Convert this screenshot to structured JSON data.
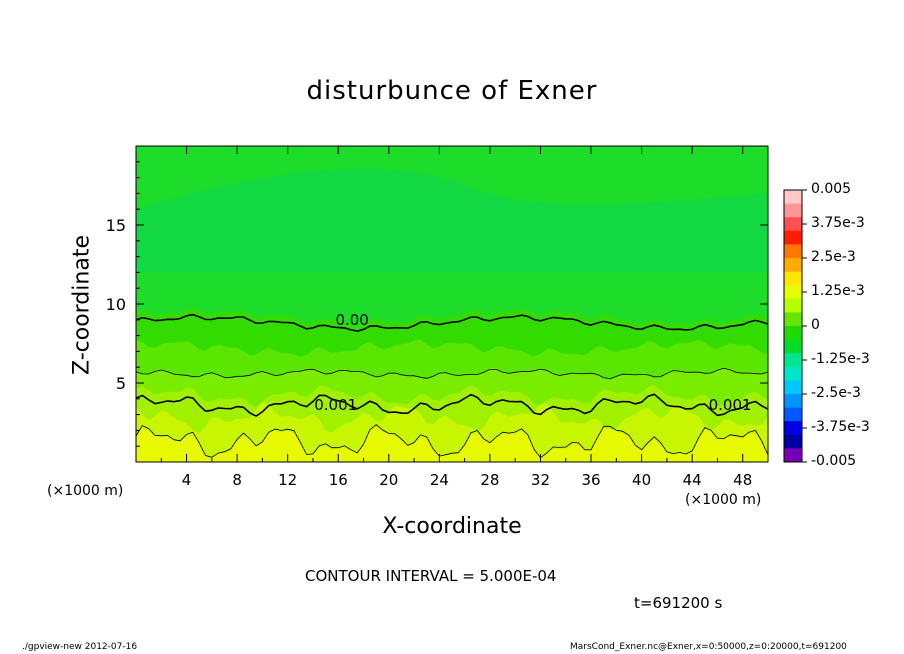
{
  "chart_data": {
    "type": "heatmap",
    "title": "disturbunce of Exner",
    "xlabel": "X-coordinate",
    "ylabel": "Z-coordinate",
    "x_unit": "(×1000 m)",
    "x_unit_right": "(×1000 m)",
    "xlim": [
      0,
      50
    ],
    "ylim": [
      0,
      20
    ],
    "x_ticks": [
      4,
      8,
      12,
      16,
      20,
      24,
      28,
      32,
      36,
      40,
      44,
      48
    ],
    "y_ticks": [
      5,
      10,
      15
    ],
    "contour_interval": "CONTOUR INTERVAL = 5.000E-04",
    "contour_labels": [
      {
        "text": "0.00",
        "x": 17.1,
        "z": 9.0
      },
      {
        "text": "0.001",
        "x": 15.8,
        "z": 3.6
      },
      {
        "text": "0.001",
        "x": 47.0,
        "z": 3.6
      }
    ],
    "colorbar": {
      "ticks": [
        "0.005",
        "3.75e-3",
        "2.5e-3",
        "1.25e-3",
        "0",
        "-1.25e-3",
        "-2.5e-3",
        "-3.75e-3",
        "-0.005"
      ],
      "colors": [
        "#ffc8c8",
        "#ff9696",
        "#ff5050",
        "#ff1e00",
        "#ff7800",
        "#ffaa00",
        "#ffe600",
        "#e6ff00",
        "#b4ff00",
        "#64e600",
        "#1edc00",
        "#00dc28",
        "#00e68c",
        "#00e6c8",
        "#00c8ff",
        "#0096ff",
        "#005aff",
        "#0000e6",
        "#0000a0",
        "#7800b4"
      ]
    },
    "time": "t=691200 s"
  },
  "footer": {
    "left": "./gpview-new   2012-07-16",
    "right": "MarsCond_Exner.nc@Exner,x=0:50000,z=0:20000,t=691200"
  }
}
